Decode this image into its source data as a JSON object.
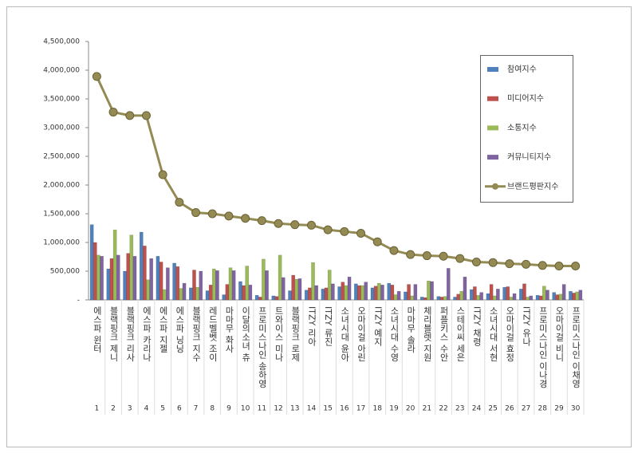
{
  "chart_data": {
    "type": "bar-line",
    "categories": [
      "에스파 윈터",
      "블랙핑크 제니",
      "블랙핑크 리사",
      "에스파 카리나",
      "에스파 지젤",
      "에스파 닝닝",
      "블랙핑크 지수",
      "레드벨벳 조이",
      "마마무 화사",
      "이달의소녀 츄",
      "프로미스나인 송하영",
      "트와이스 미나",
      "블랙핑크 로제",
      "ITZY 리아",
      "ITZY 류진",
      "소녀시대 윤아",
      "오마이걸 아린",
      "ITZY 예지",
      "소녀시대 수영",
      "마마무 솔라",
      "체리블렛 지원",
      "퍼플키스 수안",
      "스테이씨 세은",
      "ITZY 채령",
      "소녀시대 서현",
      "오마이걸 효정",
      "ITZY 유나",
      "프로미스나인 이나경",
      "오마이걸 비니",
      "프로미스나인 이채영"
    ],
    "ranks": [
      1,
      2,
      3,
      4,
      5,
      6,
      7,
      8,
      9,
      10,
      11,
      12,
      13,
      14,
      15,
      16,
      17,
      18,
      19,
      20,
      21,
      22,
      23,
      24,
      25,
      26,
      27,
      28,
      29,
      30
    ],
    "ylim": [
      0,
      4500000
    ],
    "yticks": [
      {
        "value": 0,
        "label": "-"
      },
      {
        "value": 500000,
        "label": "500,000"
      },
      {
        "value": 1000000,
        "label": "1,000,000"
      },
      {
        "value": 1500000,
        "label": "1,500,000"
      },
      {
        "value": 2000000,
        "label": "2,000,000"
      },
      {
        "value": 2500000,
        "label": "2,500,000"
      },
      {
        "value": 3000000,
        "label": "3,000,000"
      },
      {
        "value": 3500000,
        "label": "3,500,000"
      },
      {
        "value": 4000000,
        "label": "4,000,000"
      },
      {
        "value": 4500000,
        "label": "4,500,000"
      }
    ],
    "grid": false,
    "legend": "upper right",
    "series": [
      {
        "name": "참여지수",
        "type": "bar",
        "color": "#4f81bd",
        "values": [
          1310000,
          540000,
          500000,
          1180000,
          760000,
          640000,
          210000,
          160000,
          90000,
          320000,
          80000,
          70000,
          160000,
          170000,
          190000,
          230000,
          280000,
          210000,
          290000,
          140000,
          50000,
          60000,
          50000,
          180000,
          110000,
          220000,
          190000,
          80000,
          130000,
          150000
        ]
      },
      {
        "name": "미디어지수",
        "type": "bar",
        "color": "#c0504d",
        "values": [
          1000000,
          720000,
          810000,
          940000,
          660000,
          580000,
          520000,
          260000,
          270000,
          250000,
          50000,
          60000,
          430000,
          210000,
          210000,
          310000,
          250000,
          240000,
          260000,
          270000,
          40000,
          50000,
          100000,
          230000,
          270000,
          230000,
          280000,
          70000,
          90000,
          120000
        ]
      },
      {
        "name": "소통지수",
        "type": "bar",
        "color": "#9bbb59",
        "values": [
          780000,
          1220000,
          1130000,
          350000,
          180000,
          200000,
          220000,
          540000,
          560000,
          590000,
          710000,
          780000,
          360000,
          650000,
          520000,
          250000,
          250000,
          290000,
          90000,
          70000,
          330000,
          60000,
          150000,
          80000,
          70000,
          50000,
          50000,
          240000,
          100000,
          140000
        ]
      },
      {
        "name": "커뮤니티지수",
        "type": "bar",
        "color": "#8064a2",
        "values": [
          760000,
          780000,
          760000,
          720000,
          560000,
          290000,
          500000,
          510000,
          510000,
          260000,
          510000,
          390000,
          370000,
          250000,
          280000,
          400000,
          310000,
          260000,
          150000,
          270000,
          320000,
          550000,
          400000,
          130000,
          190000,
          110000,
          70000,
          170000,
          270000,
          170000
        ]
      },
      {
        "name": "브랜드평판지수",
        "type": "line",
        "color": "#948a54",
        "values": [
          3890000,
          3270000,
          3210000,
          3210000,
          2180000,
          1700000,
          1520000,
          1500000,
          1460000,
          1420000,
          1380000,
          1330000,
          1310000,
          1300000,
          1220000,
          1190000,
          1160000,
          1010000,
          860000,
          790000,
          770000,
          760000,
          720000,
          660000,
          650000,
          630000,
          620000,
          600000,
          590000,
          590000
        ]
      }
    ]
  }
}
